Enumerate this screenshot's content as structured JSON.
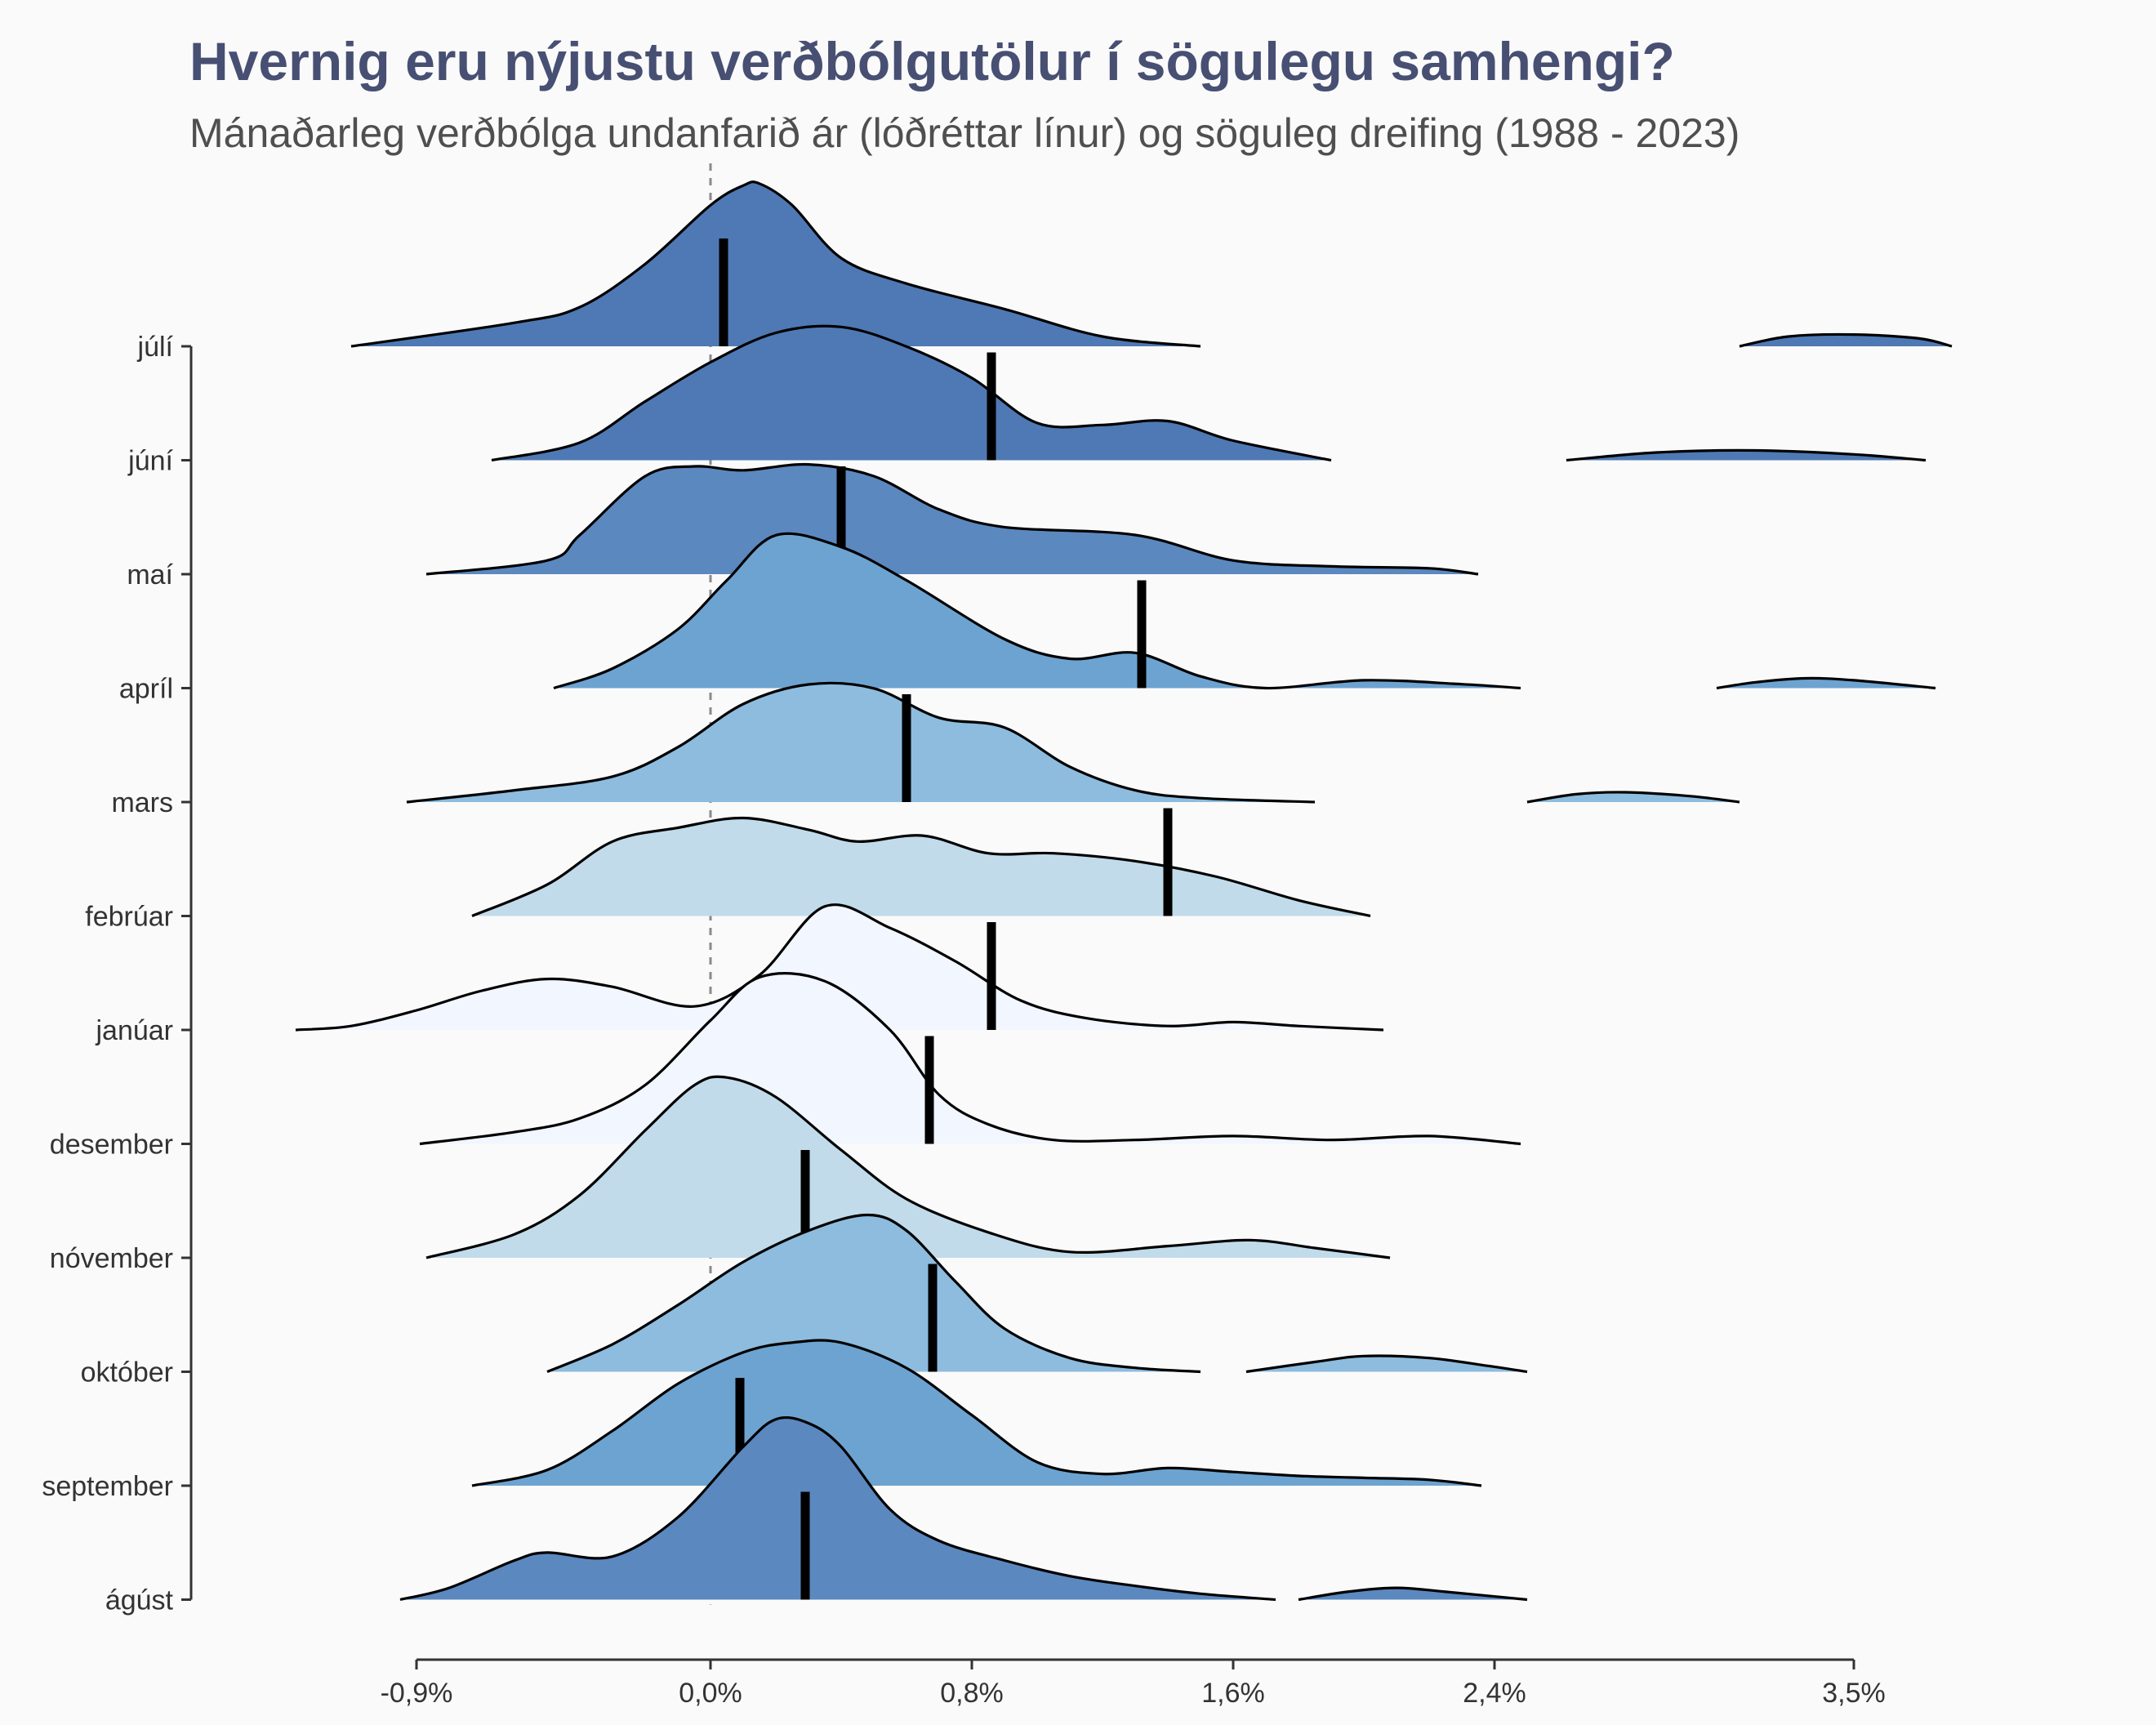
{
  "chart_data": {
    "type": "ridgeline",
    "title": "Hvernig eru nýjustu verðbólgutölur í sögulegu samhengi?",
    "subtitle": "Mánaðarleg verðbólga undanfarið ár (lóðréttar línur) og söguleg dreifing (1988 - 2023)",
    "xlabel": "",
    "ylabel": "",
    "xlim": [
      -1.8,
      4.4
    ],
    "x_ticks": [
      -0.9,
      0.0,
      0.8,
      1.6,
      2.4,
      3.5
    ],
    "x_tick_labels": [
      "-0,9%",
      "0,0%",
      "0,8%",
      "1,6%",
      "2,4%",
      "3,5%"
    ],
    "reference_line": 0.0,
    "series": [
      {
        "label": "júlí",
        "fill": "#4f79b4",
        "latest": 0.04,
        "ridges": [
          {
            "x": [
              -1.1,
              -0.6,
              -0.4,
              -0.2,
              0.0,
              0.1,
              0.15,
              0.25,
              0.4,
              0.6,
              0.9,
              1.2,
              1.5
            ],
            "y": [
              0.0,
              0.12,
              0.2,
              0.42,
              0.72,
              0.82,
              0.83,
              0.72,
              0.45,
              0.32,
              0.19,
              0.05,
              0.0
            ]
          },
          {
            "x": [
              3.15,
              3.3,
              3.5,
              3.7,
              3.8
            ],
            "y": [
              0.0,
              0.05,
              0.06,
              0.04,
              0.0
            ]
          }
        ]
      },
      {
        "label": "júní",
        "fill": "#4f79b4",
        "latest": 0.86,
        "ridges": [
          {
            "x": [
              -0.67,
              -0.4,
              -0.2,
              0.0,
              0.2,
              0.4,
              0.6,
              0.8,
              1.0,
              1.2,
              1.4,
              1.6,
              1.9
            ],
            "y": [
              0.0,
              0.09,
              0.3,
              0.5,
              0.65,
              0.68,
              0.58,
              0.42,
              0.19,
              0.18,
              0.2,
              0.1,
              0.0
            ]
          },
          {
            "x": [
              2.62,
              2.9,
              3.2,
              3.5,
              3.72
            ],
            "y": [
              0.0,
              0.04,
              0.05,
              0.03,
              0.0
            ]
          }
        ]
      },
      {
        "label": "maí",
        "fill": "#5b88bf",
        "latest": 0.4,
        "ridges": [
          {
            "x": [
              -0.87,
              -0.5,
              -0.4,
              -0.2,
              -0.05,
              0.1,
              0.3,
              0.5,
              0.7,
              0.9,
              1.3,
              1.6,
              1.9,
              2.2,
              2.35
            ],
            "y": [
              0.0,
              0.07,
              0.2,
              0.5,
              0.55,
              0.53,
              0.56,
              0.5,
              0.33,
              0.24,
              0.2,
              0.07,
              0.04,
              0.03,
              0.0
            ]
          }
        ]
      },
      {
        "label": "apríl",
        "fill": "#6da3d0",
        "latest": 1.32,
        "ridges": [
          {
            "x": [
              -0.48,
              -0.3,
              -0.1,
              0.05,
              0.2,
              0.4,
              0.6,
              0.9,
              1.1,
              1.3,
              1.5,
              1.7,
              2.0,
              2.3,
              2.48
            ],
            "y": [
              0.0,
              0.1,
              0.3,
              0.55,
              0.78,
              0.72,
              0.55,
              0.25,
              0.15,
              0.18,
              0.06,
              0.0,
              0.04,
              0.02,
              0.0
            ]
          },
          {
            "x": [
              3.08,
              3.2,
              3.35,
              3.5,
              3.75
            ],
            "y": [
              0.0,
              0.03,
              0.05,
              0.04,
              0.0
            ]
          }
        ]
      },
      {
        "label": "mars",
        "fill": "#8dbcde",
        "latest": 0.6,
        "ridges": [
          {
            "x": [
              -0.93,
              -0.6,
              -0.3,
              -0.1,
              0.1,
              0.3,
              0.5,
              0.7,
              0.9,
              1.1,
              1.3,
              1.5,
              1.85
            ],
            "y": [
              0.0,
              0.06,
              0.13,
              0.28,
              0.5,
              0.6,
              0.58,
              0.43,
              0.38,
              0.18,
              0.06,
              0.02,
              0.0
            ]
          },
          {
            "x": [
              2.5,
              2.65,
              2.8,
              3.0,
              3.15
            ],
            "y": [
              0.0,
              0.04,
              0.05,
              0.03,
              0.0
            ]
          }
        ]
      },
      {
        "label": "febrúar",
        "fill": "#c1dbea",
        "latest": 1.4,
        "ridges": [
          {
            "x": [
              -0.73,
              -0.5,
              -0.3,
              -0.1,
              0.1,
              0.3,
              0.45,
              0.65,
              0.85,
              1.05,
              1.3,
              1.55,
              1.8,
              2.02
            ],
            "y": [
              0.0,
              0.16,
              0.38,
              0.45,
              0.5,
              0.44,
              0.38,
              0.41,
              0.32,
              0.32,
              0.28,
              0.2,
              0.08,
              0.0
            ]
          }
        ]
      },
      {
        "label": "janúar",
        "fill": "#f2f6ff",
        "latest": 0.86,
        "ridges": [
          {
            "x": [
              -1.27,
              -1.1,
              -0.9,
              -0.7,
              -0.5,
              -0.3,
              -0.05,
              0.15,
              0.35,
              0.55,
              0.75,
              0.95,
              1.15,
              1.4,
              1.6,
              1.8,
              2.06
            ],
            "y": [
              0.0,
              0.02,
              0.1,
              0.2,
              0.26,
              0.22,
              0.12,
              0.28,
              0.63,
              0.52,
              0.35,
              0.15,
              0.06,
              0.02,
              0.04,
              0.02,
              0.0
            ]
          }
        ]
      },
      {
        "label": "desember",
        "fill": "#f2f6ff",
        "latest": 0.67,
        "ridges": [
          {
            "x": [
              -0.89,
              -0.6,
              -0.4,
              -0.2,
              0.0,
              0.15,
              0.35,
              0.55,
              0.7,
              0.85,
              1.05,
              1.3,
              1.6,
              1.9,
              2.2,
              2.48
            ],
            "y": [
              0.0,
              0.06,
              0.13,
              0.3,
              0.63,
              0.85,
              0.83,
              0.58,
              0.25,
              0.1,
              0.02,
              0.02,
              0.04,
              0.02,
              0.04,
              0.0
            ]
          }
        ]
      },
      {
        "label": "nóvember",
        "fill": "#c1dbea",
        "latest": 0.29,
        "ridges": [
          {
            "x": [
              -0.87,
              -0.6,
              -0.4,
              -0.2,
              -0.05,
              0.05,
              0.2,
              0.4,
              0.6,
              0.85,
              1.1,
              1.4,
              1.65,
              1.85,
              2.08
            ],
            "y": [
              0.0,
              0.12,
              0.32,
              0.65,
              0.88,
              0.92,
              0.82,
              0.55,
              0.3,
              0.13,
              0.03,
              0.06,
              0.09,
              0.05,
              0.0
            ]
          }
        ]
      },
      {
        "label": "október",
        "fill": "#8dbcde",
        "latest": 0.68,
        "ridges": [
          {
            "x": [
              -0.5,
              -0.3,
              -0.1,
              0.1,
              0.3,
              0.48,
              0.6,
              0.75,
              0.9,
              1.1,
              1.3,
              1.5
            ],
            "y": [
              0.0,
              0.14,
              0.34,
              0.56,
              0.72,
              0.8,
              0.72,
              0.46,
              0.22,
              0.07,
              0.02,
              0.0
            ]
          },
          {
            "x": [
              1.64,
              1.85,
              2.0,
              2.2,
              2.38,
              2.5
            ],
            "y": [
              0.0,
              0.05,
              0.08,
              0.07,
              0.03,
              0.0
            ]
          }
        ]
      },
      {
        "label": "september",
        "fill": "#6da3d0",
        "latest": 0.09,
        "ridges": [
          {
            "x": [
              -0.73,
              -0.5,
              -0.3,
              -0.1,
              0.1,
              0.25,
              0.4,
              0.6,
              0.8,
              1.0,
              1.2,
              1.4,
              1.6,
              1.8,
              2.0,
              2.2,
              2.36
            ],
            "y": [
              0.0,
              0.08,
              0.28,
              0.52,
              0.68,
              0.73,
              0.73,
              0.6,
              0.36,
              0.12,
              0.06,
              0.09,
              0.07,
              0.05,
              0.04,
              0.03,
              0.0
            ]
          }
        ]
      },
      {
        "label": "ágúst",
        "fill": "#5b88bf",
        "latest": 0.29,
        "ridges": [
          {
            "x": [
              -0.95,
              -0.8,
              -0.6,
              -0.5,
              -0.3,
              -0.1,
              0.1,
              0.2,
              0.3,
              0.4,
              0.55,
              0.7,
              0.9,
              1.1,
              1.3,
              1.5,
              1.73
            ],
            "y": [
              0.0,
              0.06,
              0.2,
              0.24,
              0.22,
              0.42,
              0.78,
              0.92,
              0.9,
              0.78,
              0.46,
              0.3,
              0.2,
              0.12,
              0.07,
              0.03,
              0.0
            ]
          },
          {
            "x": [
              1.8,
              1.95,
              2.1,
              2.25,
              2.5
            ],
            "y": [
              0.0,
              0.04,
              0.06,
              0.04,
              0.0
            ]
          }
        ]
      }
    ]
  }
}
